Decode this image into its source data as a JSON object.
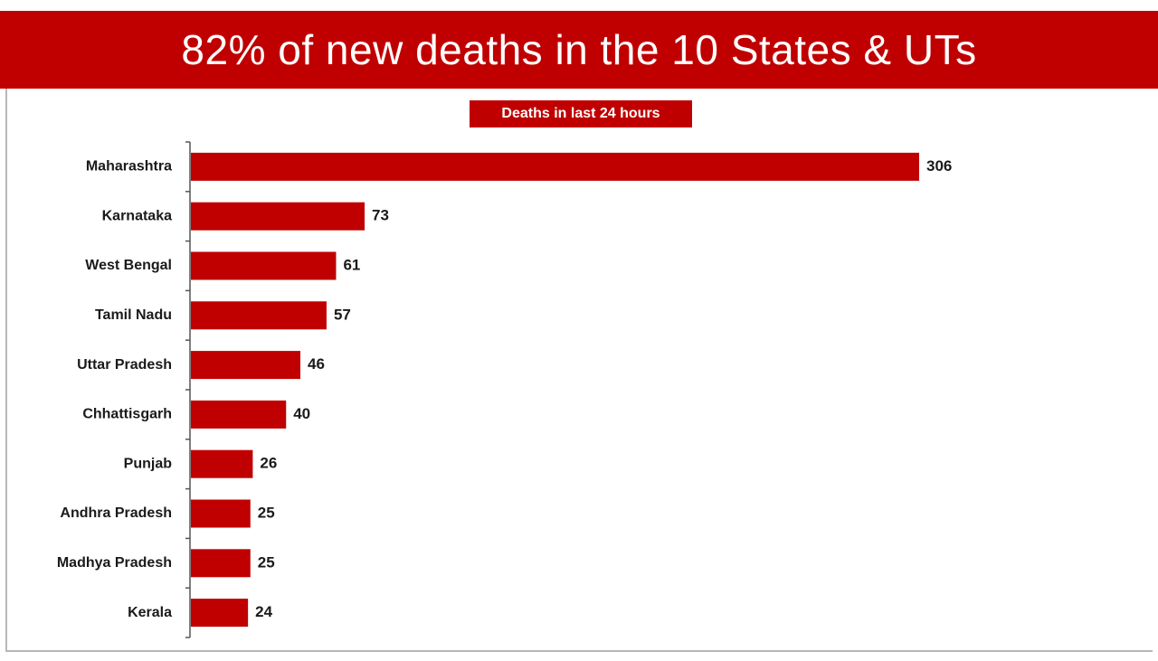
{
  "banner": {
    "title": "82% of new deaths in the 10 States & UTs"
  },
  "colors": {
    "accent": "#c00000",
    "text": "#1a1a1a",
    "axis": "#555555",
    "frame": "#b8b8b8"
  },
  "chart_data": {
    "type": "bar",
    "orientation": "horizontal",
    "title": "82% of new deaths in the 10 States & UTs",
    "subtitle": "Deaths in last 24 hours",
    "categories": [
      "Maharashtra",
      "Karnataka",
      "West Bengal",
      "Tamil Nadu",
      "Uttar Pradesh",
      "Chhattisgarh",
      "Punjab",
      "Andhra Pradesh",
      "Madhya Pradesh",
      "Kerala"
    ],
    "values": [
      306,
      73,
      61,
      57,
      46,
      40,
      26,
      25,
      25,
      24
    ],
    "data_labels": [
      "306",
      "73",
      "61",
      "57",
      "46",
      "40",
      "26",
      "25",
      "25",
      "24"
    ],
    "xlim": [
      0,
      306
    ],
    "grid": false,
    "legend": "none",
    "bar_color": "#c00000"
  }
}
